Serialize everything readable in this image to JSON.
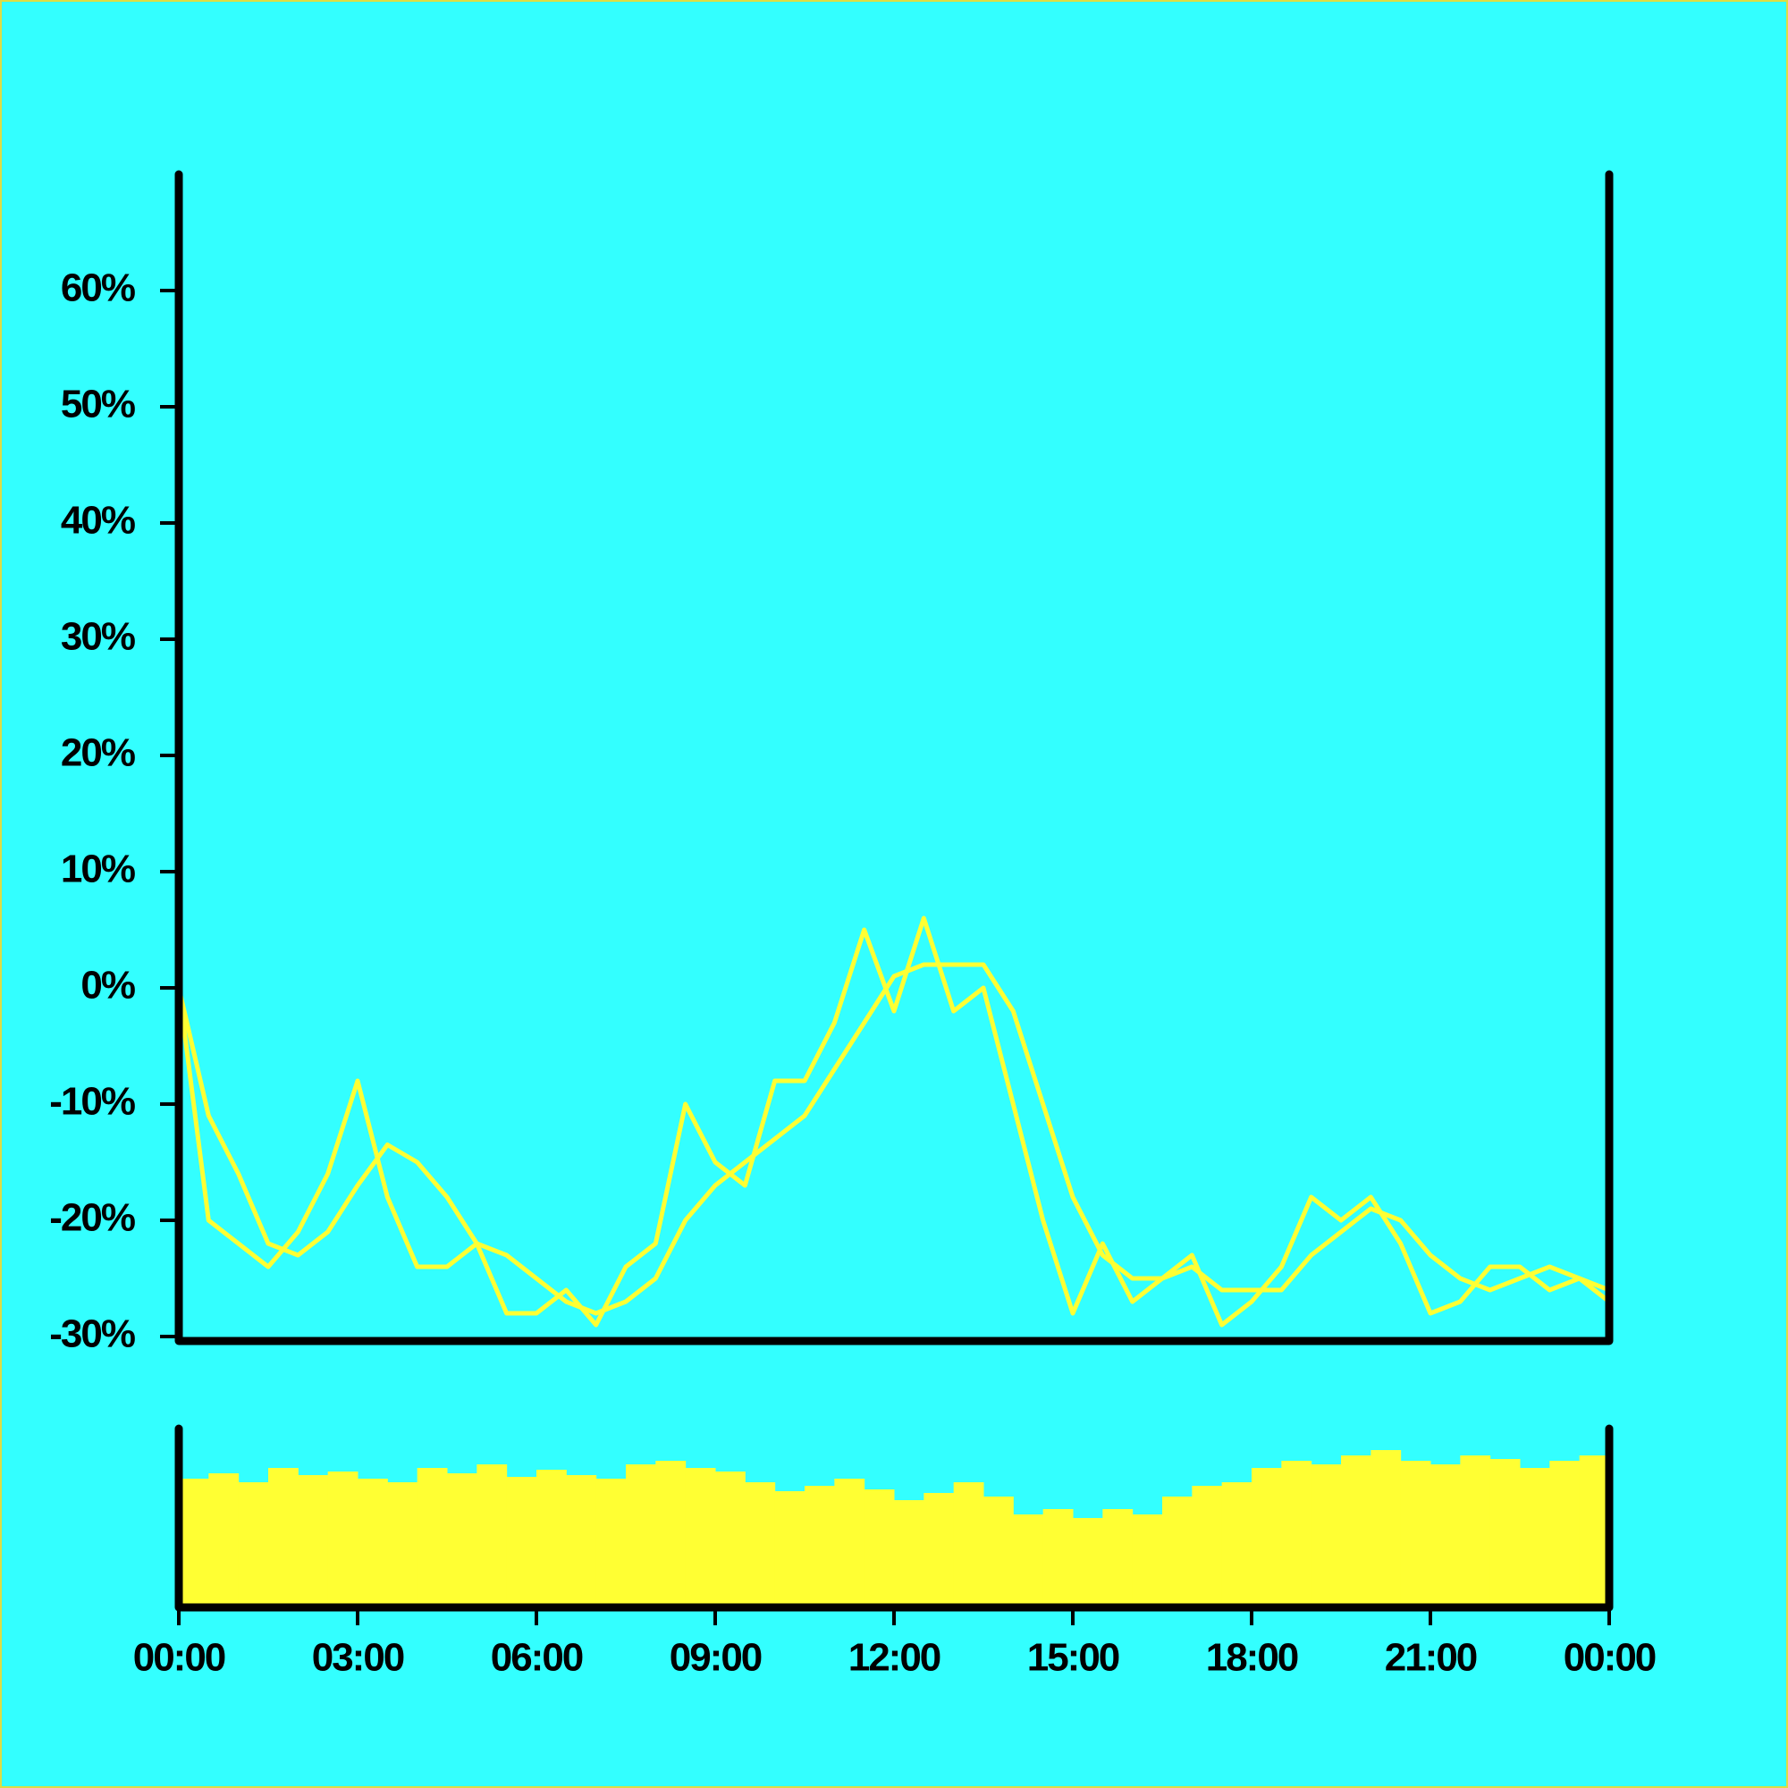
{
  "chart_data": [
    {
      "type": "line",
      "x": [
        0,
        0.5,
        1,
        1.5,
        2,
        2.5,
        3,
        3.5,
        4,
        4.5,
        5,
        5.5,
        6,
        6.5,
        7,
        7.5,
        8,
        8.5,
        9,
        9.5,
        10,
        10.5,
        11,
        11.5,
        12,
        12.5,
        13,
        13.5,
        14,
        14.5,
        15,
        15.5,
        16,
        16.5,
        17,
        17.5,
        18,
        18.5,
        19,
        19.5,
        20,
        20.5,
        21,
        21.5,
        22,
        22.5,
        23,
        23.5,
        24
      ],
      "series": [
        {
          "color": "#ffff33",
          "values": [
            0,
            -20,
            -22,
            -24,
            -21,
            -16,
            -8,
            -18,
            -24,
            -24,
            -22,
            -28,
            -28,
            -26,
            -29,
            -24,
            -22,
            -10,
            -15,
            -17,
            -8,
            -8,
            -3,
            5,
            -2,
            6,
            -2,
            0,
            -10,
            -20,
            -28,
            -22,
            -27,
            -25,
            -23,
            -29,
            -27,
            -24,
            -18,
            -20,
            -18,
            -22,
            -28,
            -27,
            -24,
            -24,
            -26,
            -25,
            -27
          ]
        },
        {
          "color": "#ffff33",
          "values": [
            0,
            -11,
            -16,
            -22,
            -23,
            -21,
            -17,
            -13.5,
            -15,
            -18,
            -22,
            -23,
            -25,
            -27,
            -28,
            -27,
            -25,
            -20,
            -17,
            -15,
            -13,
            -11,
            -7,
            -3,
            1,
            2,
            2,
            2,
            -2,
            -10,
            -18,
            -23,
            -25,
            -25,
            -24,
            -26,
            -26,
            -26,
            -23,
            -21,
            -19,
            -20,
            -23,
            -25,
            -26,
            -25,
            -24,
            -25,
            -26
          ]
        }
      ],
      "xlim": [
        0,
        24
      ],
      "ylim": [
        -30,
        70
      ],
      "yticks": [
        {
          "value": -30,
          "label": "-30%"
        },
        {
          "value": -20,
          "label": "-20%"
        },
        {
          "value": -10,
          "label": "-10%"
        },
        {
          "value": 0,
          "label": "0%"
        },
        {
          "value": 10,
          "label": "10%"
        },
        {
          "value": 20,
          "label": "20%"
        },
        {
          "value": 30,
          "label": "30%"
        },
        {
          "value": 40,
          "label": "40%"
        },
        {
          "value": 50,
          "label": "50%"
        },
        {
          "value": 60,
          "label": "60%"
        }
      ]
    },
    {
      "type": "bar",
      "x": [
        0,
        0.5,
        1,
        1.5,
        2,
        2.5,
        3,
        3.5,
        4,
        4.5,
        5,
        5.5,
        6,
        6.5,
        7,
        7.5,
        8,
        8.5,
        9,
        9.5,
        10,
        10.5,
        11,
        11.5,
        12,
        12.5,
        13,
        13.5,
        14,
        14.5,
        15,
        15.5,
        16,
        16.5,
        17,
        17.5,
        18,
        18.5,
        19,
        19.5,
        20,
        20.5,
        21,
        21.5,
        22,
        22.5,
        23,
        23.5
      ],
      "values": [
        72,
        75,
        70,
        78,
        74,
        76,
        72,
        70,
        78,
        75,
        80,
        73,
        77,
        74,
        72,
        80,
        82,
        78,
        76,
        70,
        65,
        68,
        72,
        66,
        60,
        64,
        70,
        62,
        52,
        55,
        50,
        55,
        52,
        62,
        68,
        70,
        78,
        82,
        80,
        85,
        88,
        82,
        80,
        85,
        83,
        78,
        82,
        85
      ],
      "color": "#ffff33",
      "xlim": [
        0,
        24
      ],
      "ylim": [
        0,
        100
      ],
      "xticks": [
        {
          "value": 0,
          "label": "00:00"
        },
        {
          "value": 3,
          "label": "03:00"
        },
        {
          "value": 6,
          "label": "06:00"
        },
        {
          "value": 9,
          "label": "09:00"
        },
        {
          "value": 12,
          "label": "12:00"
        },
        {
          "value": 15,
          "label": "15:00"
        },
        {
          "value": 18,
          "label": "18:00"
        },
        {
          "value": 21,
          "label": "21:00"
        },
        {
          "value": 24,
          "label": "00:00"
        }
      ]
    }
  ]
}
